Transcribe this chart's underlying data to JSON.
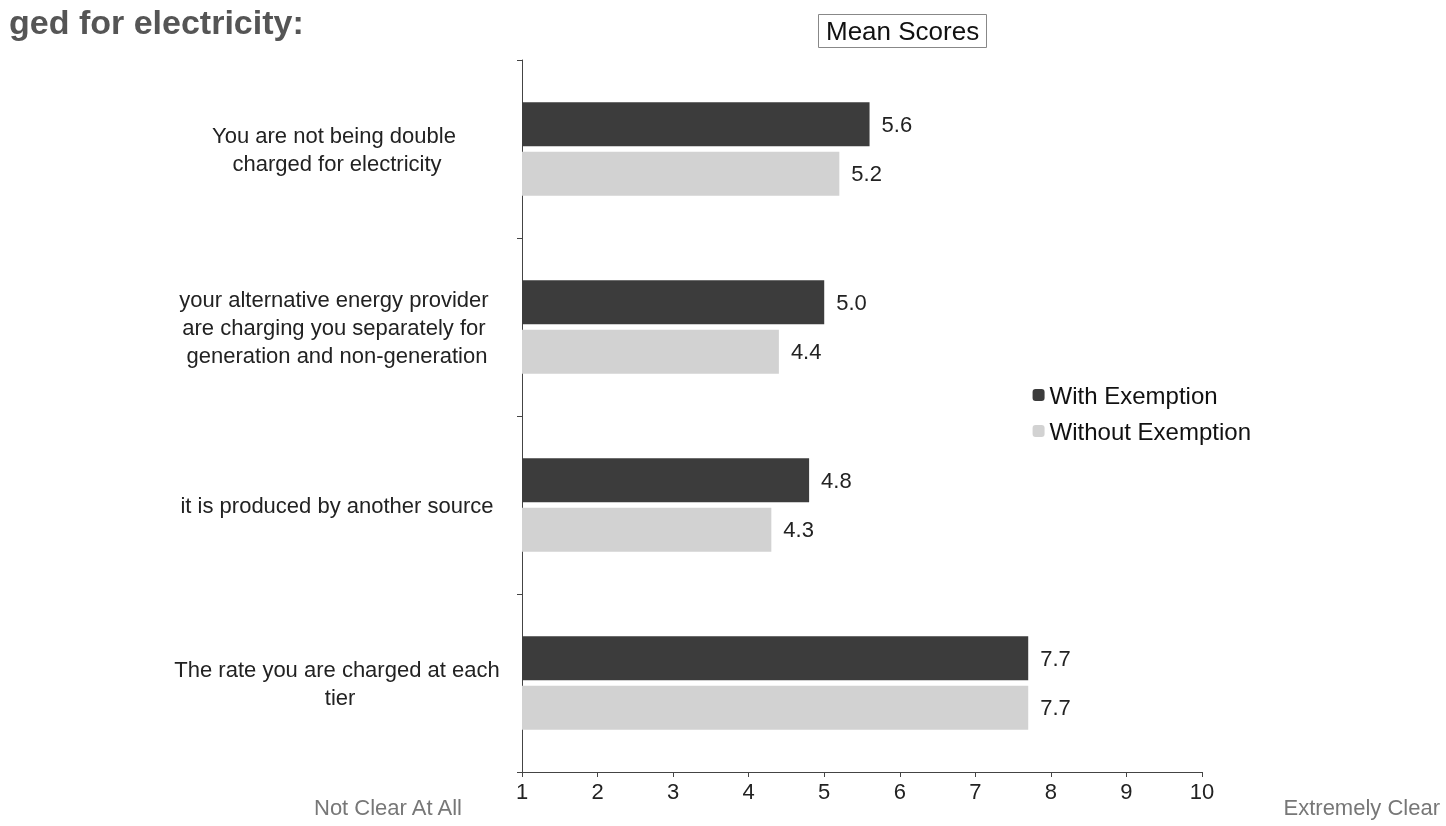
{
  "chart_data": {
    "type": "bar",
    "orientation": "horizontal",
    "title": "ged for electricity:",
    "subtitle": "Mean Scores",
    "categories": [
      "You are not being double charged for electricity",
      "your alternative energy provider are charging you separately for generation and non-generation",
      "it is produced by another source",
      "The rate you are charged at each tier"
    ],
    "series": [
      {
        "name": "With Exemption",
        "color": "#3c3c3c",
        "values": [
          5.6,
          5.0,
          4.8,
          7.7
        ],
        "value_labels": [
          "5.6",
          "5.0",
          "4.8",
          "7.7"
        ]
      },
      {
        "name": "Without Exemption",
        "color": "#d2d2d2",
        "values": [
          5.2,
          4.4,
          4.3,
          7.7
        ],
        "value_labels": [
          "5.2",
          "4.4",
          "4.3",
          "7.7"
        ]
      }
    ],
    "xlim": [
      1,
      10
    ],
    "xticks": [
      1,
      2,
      3,
      4,
      5,
      6,
      7,
      8,
      9,
      10
    ],
    "grid": false,
    "legend": "right",
    "annotations": [
      "Not Clear At All",
      "Extremely Clear"
    ]
  }
}
